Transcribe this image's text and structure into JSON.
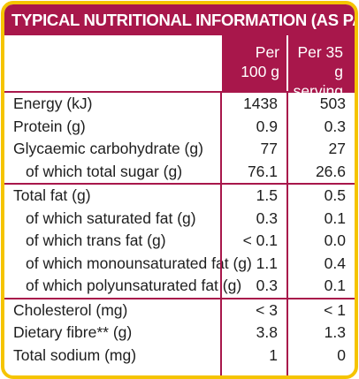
{
  "title": "TYPICAL NUTRITIONAL INFORMATION (AS PACKED)",
  "columns": {
    "per100_line1": "Per",
    "per100_line2": "100 g",
    "serving_line1": "Per  35 g",
    "serving_line2": "serving"
  },
  "rows": [
    {
      "label": "Energy (kJ)",
      "per100": "1438",
      "serving": "503"
    },
    {
      "label": "Protein (g)",
      "per100": "0.9",
      "serving": "0.3"
    },
    {
      "label": "Glycaemic carbohydrate (g)",
      "per100": "77",
      "serving": "27"
    },
    {
      "label": "of which total sugar (g)",
      "per100": "76.1",
      "serving": "26.6"
    },
    {
      "label": "Total fat (g)",
      "per100": "1.5",
      "serving": "0.5"
    },
    {
      "label": "of which saturated fat (g)",
      "per100": "0.3",
      "serving": "0.1"
    },
    {
      "label": "of which trans fat (g)",
      "per100": "< 0.1",
      "serving": "0.0"
    },
    {
      "label": "of which monounsaturated fat (g)",
      "per100": "1.1",
      "serving": "0.4"
    },
    {
      "label": "of which polyunsaturated fat (g)",
      "per100": "0.3",
      "serving": "0.1"
    },
    {
      "label": "Cholesterol (mg)",
      "per100": "< 3",
      "serving": "< 1"
    },
    {
      "label": "Dietary fibre** (g)",
      "per100": "3.8",
      "serving": "1.3"
    },
    {
      "label": "Total sodium (mg)",
      "per100": "1",
      "serving": "0"
    }
  ],
  "colors": {
    "header_bg": "#a8174b",
    "border": "#f5c400"
  }
}
